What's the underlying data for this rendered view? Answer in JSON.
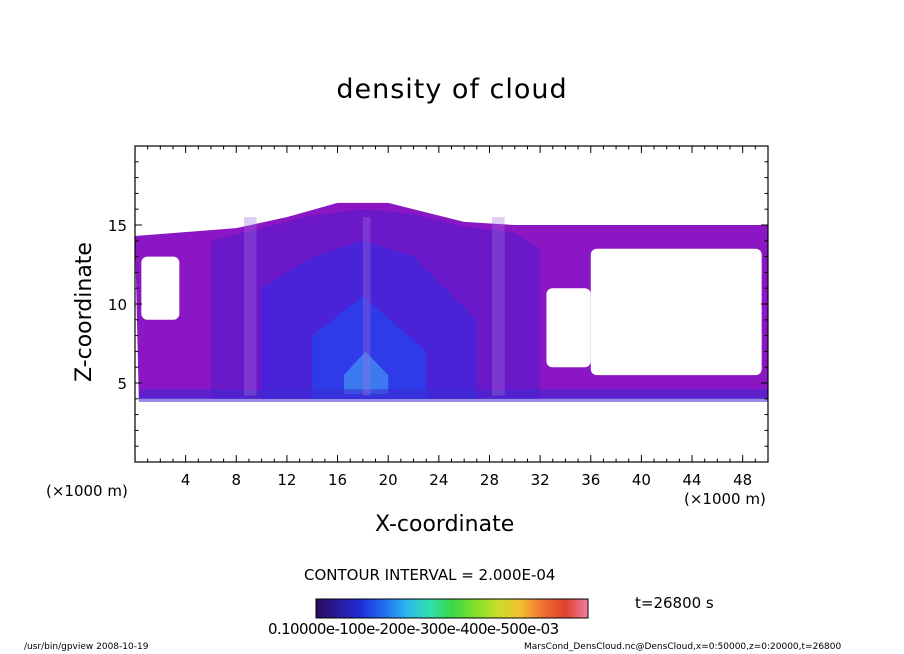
{
  "chart_data": {
    "type": "heatmap",
    "title": "density of cloud",
    "xlabel": "X-coordinate",
    "ylabel": "Z-coordinate",
    "x_unit_left": "(×1000 m)",
    "x_unit_right": "(×1000 m)",
    "xlim": [
      0,
      50
    ],
    "ylim": [
      0,
      20
    ],
    "x_ticks": [
      4,
      8,
      12,
      16,
      20,
      24,
      28,
      32,
      36,
      40,
      44,
      48
    ],
    "y_ticks": [
      5,
      10,
      15
    ],
    "contour_interval": "CONTOUR INTERVAL = 2.000E-04",
    "time_label": "t=26800 s",
    "colorbar_labels": "0.10000e-100e-200e-300e-400e-500e-03",
    "colorbar_range": [
      0.0001,
      0.0005
    ],
    "cloud_layers": [
      {
        "name": "outer",
        "color": "#8a16c4",
        "z_bottom": 4.0,
        "x_left": 0.3,
        "x_right": 50,
        "top": [
          [
            0,
            14.3
          ],
          [
            8,
            14.8
          ],
          [
            12,
            15.5
          ],
          [
            16,
            16.4
          ],
          [
            20,
            16.4
          ],
          [
            22,
            16.0
          ],
          [
            26,
            15.2
          ],
          [
            30,
            15.0
          ],
          [
            50,
            15.0
          ]
        ]
      },
      {
        "name": "mid",
        "color": "#6a18c8",
        "z_bottom": 4.0,
        "x_left": 6,
        "x_right": 32,
        "top": [
          [
            6,
            14.0
          ],
          [
            10,
            14.8
          ],
          [
            14,
            15.6
          ],
          [
            18,
            16.0
          ],
          [
            22,
            15.7
          ],
          [
            26,
            14.9
          ],
          [
            30,
            14.5
          ],
          [
            32,
            13.5
          ]
        ]
      },
      {
        "name": "core",
        "color": "#4a22d8",
        "z_bottom": 4.0,
        "x_left": 10,
        "x_right": 27,
        "top": [
          [
            10,
            11
          ],
          [
            14,
            13
          ],
          [
            18,
            14
          ],
          [
            22,
            13
          ],
          [
            27,
            9
          ]
        ]
      },
      {
        "name": "center",
        "color": "#2f3ae8",
        "z_bottom": 4.0,
        "x_left": 14,
        "x_right": 23,
        "top": [
          [
            14,
            8
          ],
          [
            18,
            10.5
          ],
          [
            23,
            7
          ]
        ]
      },
      {
        "name": "peak",
        "color": "#3d7af2",
        "z_bottom": 4.3,
        "x_left": 16.5,
        "x_right": 20,
        "top": [
          [
            16.5,
            5.5
          ],
          [
            18.2,
            7.0
          ],
          [
            20,
            5.5
          ]
        ]
      }
    ],
    "gaps": [
      {
        "x": [
          0.5,
          3.5
        ],
        "z": [
          9,
          13
        ]
      },
      {
        "x": [
          32.5,
          36
        ],
        "z": [
          6,
          11
        ]
      },
      {
        "x": [
          36,
          49.5
        ],
        "z": [
          5.5,
          13.5
        ]
      }
    ],
    "colorbar_colors": [
      "#2a0a5a",
      "#2b1a9a",
      "#1e2fd8",
      "#1f6ff0",
      "#2bb7f0",
      "#2ee0b0",
      "#39d84a",
      "#7ee02a",
      "#c8e02a",
      "#f0c030",
      "#f07030",
      "#e04030",
      "#f080a0"
    ]
  },
  "footer": {
    "left": "/usr/bin/gpview   2008-10-19",
    "right": "MarsCond_DensCloud.nc@DensCloud,x=0:50000,z=0:20000,t=26800"
  }
}
